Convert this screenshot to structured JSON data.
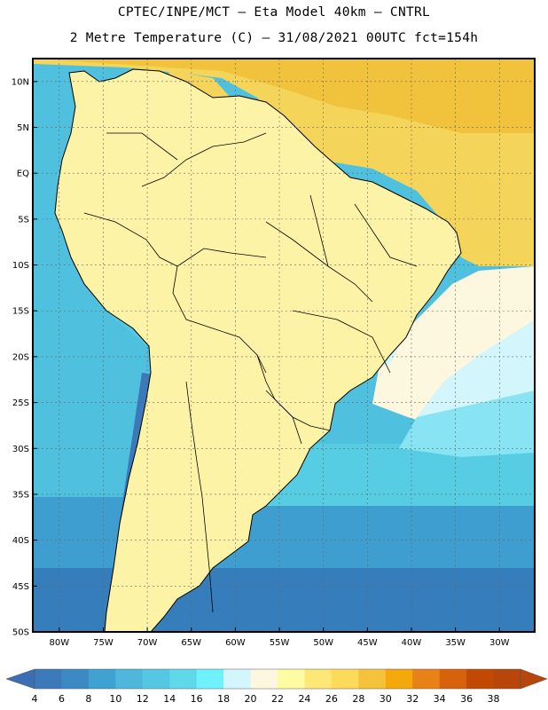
{
  "header": {
    "line1": "CPTEC/INPE/MCT –  Eta Model 40km – CNTRL",
    "line2": "2 Metre Temperature (C) – 31/08/2021 00UTC fct=154h"
  },
  "map": {
    "lat_labels": [
      "10N",
      "5N",
      "EQ",
      "5S",
      "10S",
      "15S",
      "20S",
      "25S",
      "30S",
      "35S",
      "40S",
      "45S",
      "50S"
    ],
    "lat_values": [
      10,
      5,
      0,
      -5,
      -10,
      -15,
      -20,
      -25,
      -30,
      -35,
      -40,
      -45,
      -50
    ],
    "lon_labels": [
      "80W",
      "75W",
      "70W",
      "65W",
      "60W",
      "55W",
      "50W",
      "45W",
      "40W",
      "35W",
      "30W"
    ],
    "lon_values": [
      -80,
      -75,
      -70,
      -65,
      -60,
      -55,
      -50,
      -45,
      -40,
      -35,
      -30
    ],
    "lat_range": [
      -50,
      12.5
    ],
    "lon_range": [
      -83,
      -26
    ],
    "ocean_atlantic_north_color": "#f5d45a",
    "land_color": "#fdf3a6",
    "pacific_color": "#5ad3e6",
    "coast_color": "#000000",
    "grid_color": "#555555"
  },
  "colorbar": {
    "labels": [
      "4",
      "6",
      "8",
      "10",
      "12",
      "14",
      "16",
      "18",
      "20",
      "22",
      "24",
      "26",
      "28",
      "30",
      "32",
      "34",
      "36",
      "38"
    ],
    "colors": [
      "#3c79b8",
      "#3c8ac4",
      "#3fa2d0",
      "#4fb7dc",
      "#55c7e2",
      "#5fd8ea",
      "#6ff2fb",
      "#d2f6fb",
      "#fef7e0",
      "#fefca2",
      "#fde776",
      "#fcda5a",
      "#f5c23c",
      "#f5a80a",
      "#e88216",
      "#d8620c",
      "#c24904",
      "#b8460a"
    ],
    "low_color": "#3a6eb5",
    "high_color": "#b8460a"
  }
}
